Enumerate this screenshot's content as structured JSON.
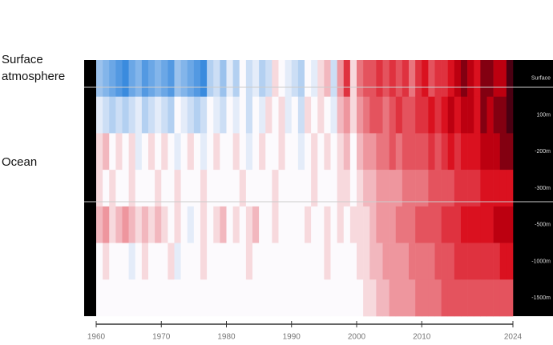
{
  "chart_data": {
    "type": "heatmap",
    "labels": [
      "Surface atmosphere",
      "Ocean"
    ],
    "rows": [
      "Surface",
      "100m",
      "-200m",
      "-300m",
      "-500m",
      "-1000m",
      "-1500m"
    ],
    "x": [
      1960,
      1961,
      1962,
      1963,
      1964,
      1965,
      1966,
      1967,
      1968,
      1969,
      1970,
      1971,
      1972,
      1973,
      1974,
      1975,
      1976,
      1977,
      1978,
      1979,
      1980,
      1981,
      1982,
      1983,
      1984,
      1985,
      1986,
      1987,
      1988,
      1989,
      1990,
      1991,
      1992,
      1993,
      1994,
      1995,
      1996,
      1997,
      1998,
      1999,
      2000,
      2001,
      2002,
      2003,
      2004,
      2005,
      2006,
      2007,
      2008,
      2009,
      2010,
      2011,
      2012,
      2013,
      2014,
      2015,
      2016,
      2017,
      2018,
      2019,
      2020,
      2021,
      2022,
      2023
    ],
    "xlim": [
      1960,
      2024
    ],
    "xticks": [
      1960,
      1970,
      1980,
      1990,
      2000,
      2010,
      2024
    ],
    "zlim": [
      -1,
      1
    ],
    "colors": {
      "negative": "#0a6fd6",
      "positive": "#d8000f",
      "extreme": "#4a0012"
    },
    "values": [
      [
        -0.4,
        -0.5,
        -0.6,
        -0.7,
        -0.8,
        -0.6,
        -0.5,
        -0.7,
        -0.6,
        -0.5,
        -0.6,
        -0.7,
        -0.4,
        -0.5,
        -0.6,
        -0.7,
        -0.8,
        -0.3,
        -0.2,
        -0.4,
        -0.1,
        -0.3,
        0,
        -0.2,
        -0.1,
        -0.3,
        -0.2,
        0.1,
        0,
        -0.1,
        -0.2,
        -0.3,
        0,
        -0.1,
        0.1,
        0.2,
        -0.2,
        0.3,
        0.6,
        0.1,
        0.4,
        0.5,
        0.5,
        0.6,
        0.5,
        0.6,
        0.5,
        0.6,
        0.4,
        0.6,
        0.7,
        0.5,
        0.6,
        0.6,
        0.7,
        0.8,
        0.9,
        0.8,
        0.7,
        0.9,
        0.9,
        0.8,
        0.8,
        1.0
      ],
      [
        -0.1,
        -0.2,
        -0.3,
        -0.2,
        -0.3,
        -0.2,
        -0.1,
        -0.3,
        -0.2,
        -0.1,
        -0.2,
        -0.3,
        0,
        -0.1,
        -0.2,
        -0.3,
        -0.2,
        0,
        -0.1,
        -0.2,
        0,
        -0.1,
        0,
        -0.2,
        0,
        -0.1,
        0.1,
        0,
        0.1,
        -0.1,
        0,
        -0.2,
        0.1,
        0,
        0.1,
        0,
        -0.1,
        0.2,
        0.3,
        0.1,
        0.3,
        0.4,
        0.5,
        0.5,
        0.4,
        0.5,
        0.6,
        0.5,
        0.5,
        0.6,
        0.6,
        0.7,
        0.6,
        0.7,
        0.8,
        0.7,
        0.8,
        0.8,
        0.7,
        0.9,
        0.8,
        0.9,
        0.9,
        1.0
      ],
      [
        0.1,
        0.2,
        0,
        0.1,
        0,
        0.1,
        -0.1,
        0,
        0.1,
        0,
        0.1,
        0,
        -0.1,
        0,
        0.1,
        0,
        -0.1,
        0,
        0.1,
        0,
        0,
        0.1,
        0,
        -0.1,
        0,
        0.1,
        0,
        0,
        0.1,
        0,
        0,
        -0.1,
        0,
        0.1,
        0,
        0.1,
        0,
        0.1,
        0.2,
        0,
        0.2,
        0.3,
        0.3,
        0.4,
        0.4,
        0.5,
        0.4,
        0.5,
        0.5,
        0.5,
        0.5,
        0.6,
        0.5,
        0.6,
        0.7,
        0.6,
        0.7,
        0.7,
        0.7,
        0.8,
        0.8,
        0.8,
        0.9,
        0.9
      ],
      [
        0.1,
        0,
        0.1,
        0,
        0,
        0.1,
        0,
        0,
        0,
        0.1,
        0,
        0,
        0.1,
        0,
        0,
        0,
        0.1,
        0,
        0,
        0,
        0,
        0,
        0.1,
        0,
        0,
        0,
        0,
        0.1,
        0,
        0,
        0,
        0,
        0,
        0.1,
        0,
        0,
        0,
        0.1,
        0.1,
        0,
        0.1,
        0.2,
        0.2,
        0.3,
        0.3,
        0.3,
        0.3,
        0.4,
        0.4,
        0.4,
        0.4,
        0.5,
        0.5,
        0.5,
        0.5,
        0.6,
        0.6,
        0.6,
        0.6,
        0.7,
        0.7,
        0.7,
        0.7,
        0.7
      ],
      [
        0.2,
        0.3,
        0.1,
        0.2,
        0.3,
        0.2,
        0.1,
        0.2,
        0.1,
        0.2,
        0.1,
        0,
        0.1,
        0,
        -0.1,
        0,
        0.1,
        0,
        0.1,
        0.2,
        0,
        0.1,
        0,
        0.1,
        0.2,
        0,
        0,
        0.1,
        0,
        0,
        0,
        0,
        0.1,
        0,
        0,
        0.1,
        0,
        0.1,
        0,
        0.1,
        0.1,
        0.1,
        0.2,
        0.3,
        0.3,
        0.3,
        0.4,
        0.4,
        0.4,
        0.5,
        0.5,
        0.5,
        0.5,
        0.6,
        0.6,
        0.6,
        0.7,
        0.7,
        0.7,
        0.7,
        0.7,
        0.8,
        0.8,
        0.8
      ],
      [
        0,
        0.1,
        0,
        0,
        0,
        -0.1,
        0,
        0.1,
        0,
        0,
        0,
        0.1,
        -0.1,
        0,
        0,
        0,
        0.1,
        0,
        0,
        0,
        0,
        0,
        0,
        0.1,
        0,
        0,
        0,
        0,
        0,
        0,
        0,
        0,
        0,
        0,
        0,
        0.1,
        0,
        0,
        0,
        0,
        0.1,
        0.1,
        0.2,
        0.2,
        0.3,
        0.3,
        0.3,
        0.3,
        0.4,
        0.4,
        0.4,
        0.4,
        0.5,
        0.5,
        0.5,
        0.6,
        0.6,
        0.6,
        0.6,
        0.6,
        0.6,
        0.6,
        0.7,
        0.7
      ],
      [
        0,
        0,
        0,
        0,
        0,
        0,
        0,
        0,
        0,
        0,
        0,
        0,
        0,
        0,
        0,
        0,
        0,
        0,
        0,
        0,
        0,
        0,
        0,
        0,
        0,
        0,
        0,
        0,
        0,
        0,
        0,
        0,
        0,
        0,
        0,
        0,
        0,
        0,
        0,
        0,
        0,
        0.1,
        0.1,
        0.2,
        0.2,
        0.3,
        0.3,
        0.3,
        0.3,
        0.4,
        0.4,
        0.4,
        0.4,
        0.5,
        0.5,
        0.5,
        0.5,
        0.5,
        0.5,
        0.5,
        0.5,
        0.5,
        0.5,
        0.5
      ]
    ]
  }
}
